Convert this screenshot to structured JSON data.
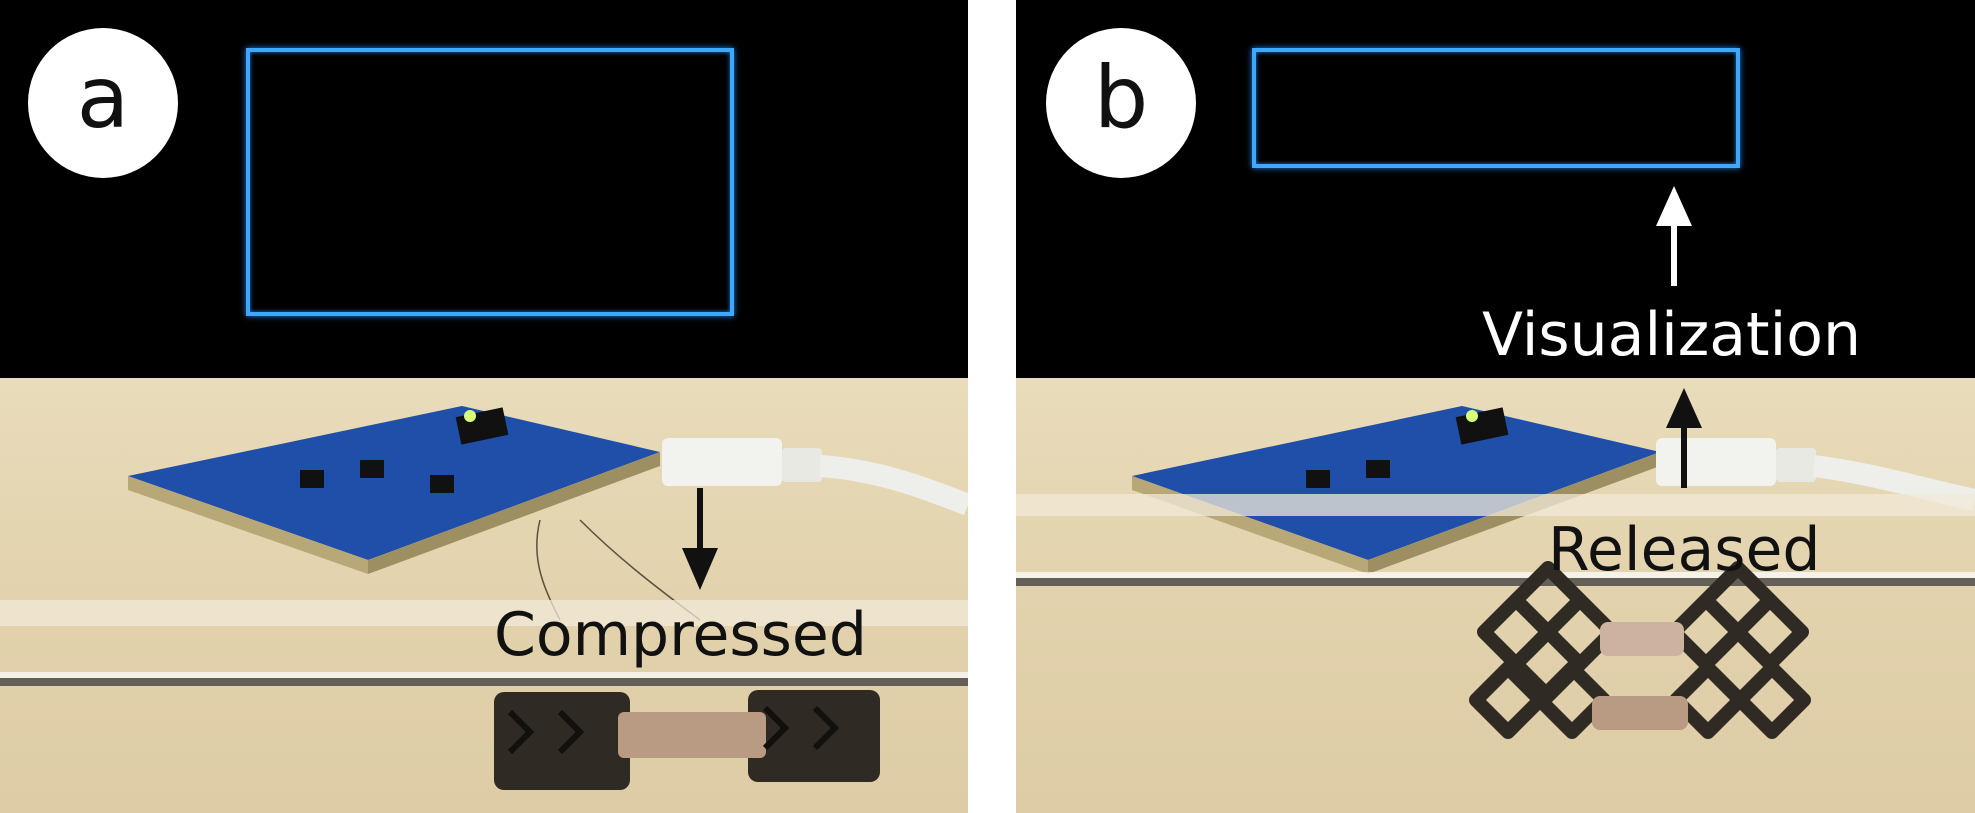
{
  "panels": [
    {
      "id": "a",
      "badge": "a",
      "state_label": "Compressed"
    },
    {
      "id": "b",
      "badge": "b",
      "state_label": "Released",
      "visualization_label": "Visualization"
    }
  ],
  "colors": {
    "screen_outline": "#3fa7ff",
    "circuit_board": "#1f4fa8",
    "tabletop": "#e3d3ae",
    "sample": "#2f2a24",
    "arrow_dark": "#111111",
    "arrow_light": "#ffffff"
  }
}
